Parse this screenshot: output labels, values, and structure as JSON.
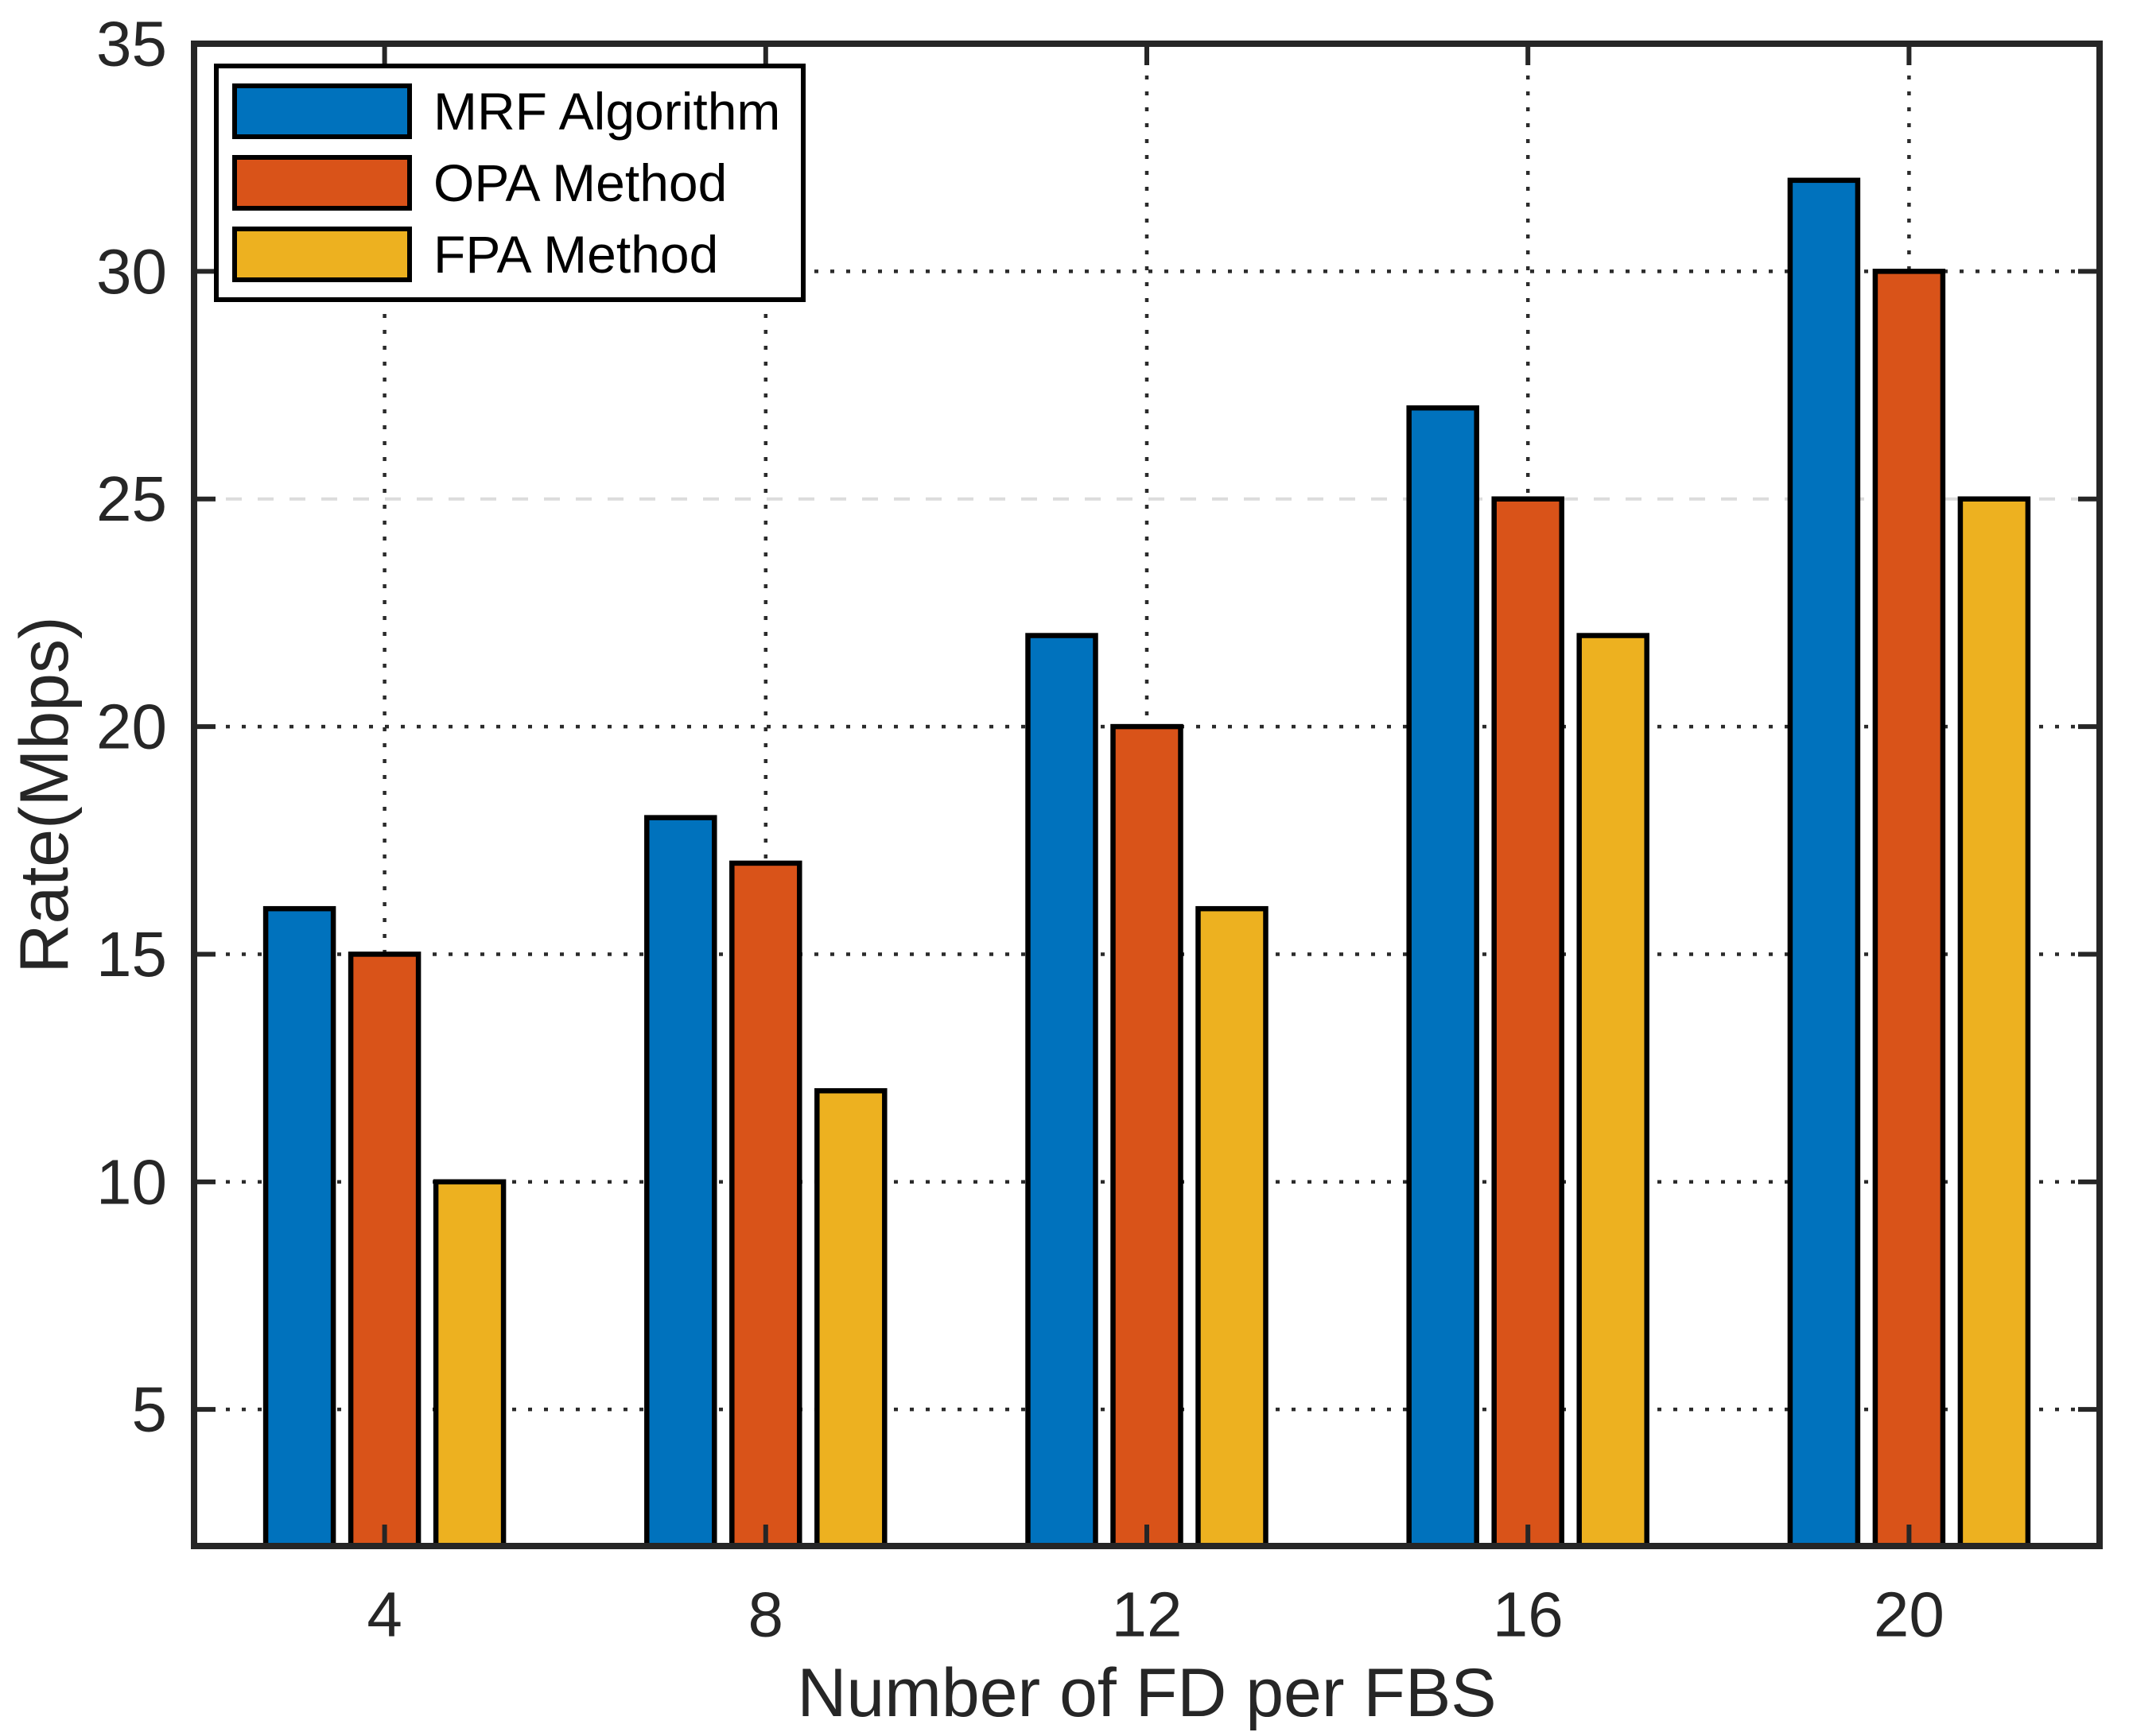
{
  "chart_data": {
    "type": "bar",
    "title": "",
    "xlabel": "Number of FD per FBS",
    "ylabel": "Rate(Mbps)",
    "categories": [
      "4",
      "8",
      "12",
      "16",
      "20"
    ],
    "series": [
      {
        "name": "MRF Algorithm",
        "color": "#0072BD",
        "values": [
          16,
          18,
          22,
          27,
          32
        ]
      },
      {
        "name": "OPA Method",
        "color": "#D95319",
        "values": [
          15,
          17,
          20,
          25,
          30
        ]
      },
      {
        "name": "FPA Method",
        "color": "#EDB120",
        "values": [
          10,
          12,
          16,
          22,
          25
        ]
      }
    ],
    "yticks": [
      "5",
      "10",
      "15",
      "20",
      "25",
      "30",
      "35"
    ],
    "ylim": [
      2,
      35
    ],
    "grid": {
      "style": "dotted",
      "dark_color": "#2b2b2b",
      "light_color": "#dcdcdc",
      "light_line_value": 25,
      "vertical_lines_at_categories": true
    },
    "legend_position": "top-left",
    "bar_edge_color": "#000000",
    "axis_color": "#262626",
    "background": "#ffffff"
  }
}
